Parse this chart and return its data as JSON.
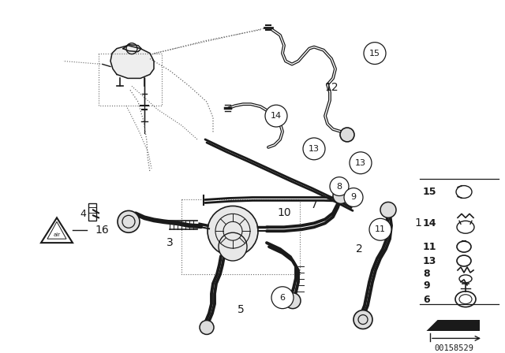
{
  "bg_color": "#ffffff",
  "fig_width": 6.4,
  "fig_height": 4.48,
  "dpi": 100,
  "part_number": "00158529",
  "line_color": "#1a1a1a",
  "dot_color": "#555555"
}
